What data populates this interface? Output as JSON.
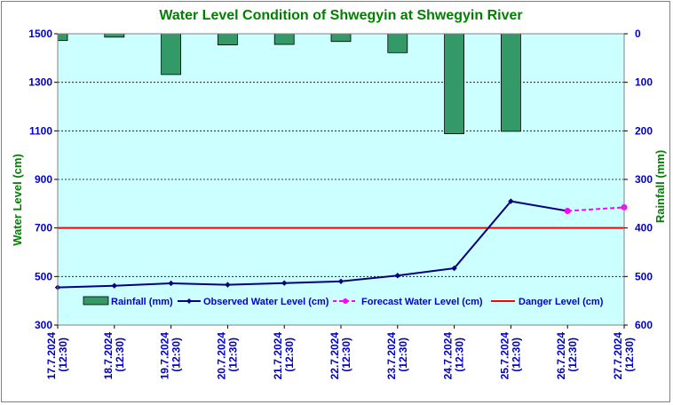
{
  "chart_data": {
    "type": "bar+line",
    "title": "Water Level Condition of Shwegyin at Shwegyin River",
    "ylabel_left": "Water Level (cm)",
    "ylabel_right": "Rainfall (mm)",
    "ylim_left": [
      300,
      1500
    ],
    "yticks_left": [
      300,
      500,
      700,
      900,
      1100,
      1300,
      1500
    ],
    "ylim_right": [
      600,
      0
    ],
    "yticks_right": [
      0,
      100,
      200,
      300,
      400,
      500,
      600
    ],
    "categories": [
      [
        "17.7.2024",
        "(12:30)"
      ],
      [
        "18.7.2024",
        "(12:30)"
      ],
      [
        "19.7.2024",
        "(12:30)"
      ],
      [
        "20.7.2024",
        "(12:30)"
      ],
      [
        "21.7.2024",
        "(12:30)"
      ],
      [
        "22.7.2024",
        "(12:30)"
      ],
      [
        "23.7.2024",
        "(12:30)"
      ],
      [
        "24.7.2024",
        "(12:30)"
      ],
      [
        "25.7.2024",
        "(12:30)"
      ],
      [
        "26.7.2024",
        "(12:30)"
      ],
      [
        "27.7.2024",
        "(12:30)"
      ]
    ],
    "rainfall": {
      "name": "Rainfall (mm)",
      "values": [
        14,
        7,
        84,
        23,
        22,
        16,
        39,
        206,
        201,
        null,
        null
      ]
    },
    "observed": {
      "name": "Observed Water Level (cm)",
      "values": [
        455,
        462,
        472,
        466,
        473,
        480,
        504,
        534,
        810,
        770,
        null
      ]
    },
    "forecast": {
      "name": "Forecast Water Level (cm)",
      "values": [
        null,
        null,
        null,
        null,
        null,
        null,
        null,
        null,
        null,
        770,
        785
      ]
    },
    "danger": {
      "name": "Danger Level (cm)",
      "value": 700
    },
    "grid": true,
    "legend_position": "bottom-inside",
    "colors": {
      "plot_bg": "#ccffff",
      "rainfall": "#339966",
      "observed": "#000080",
      "forecast": "#ff00ff",
      "danger": "#ff0000",
      "title": "#008000",
      "axis_left_title": "#008000",
      "axis_right_title": "#008000",
      "ticks": "#0000cc"
    }
  }
}
